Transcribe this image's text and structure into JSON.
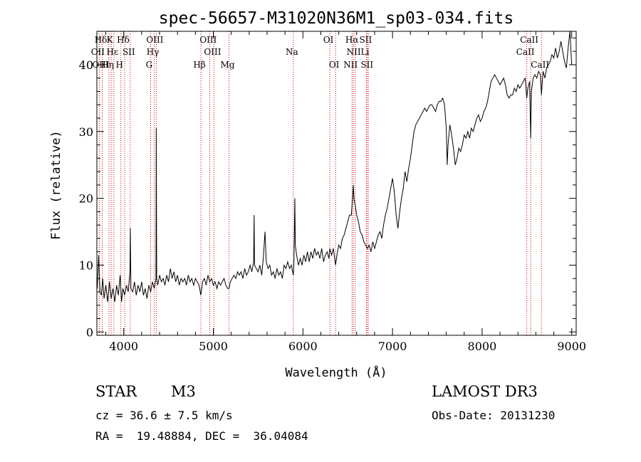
{
  "chart_data": {
    "type": "line",
    "title": "spec-56657-M31020N36M1_sp03-034.fits",
    "xlabel": "Wavelength (Å)",
    "ylabel": "Flux (relative)",
    "xlim": [
      3700,
      9050
    ],
    "ylim": [
      -0.5,
      45
    ],
    "xticks": [
      4000,
      5000,
      6000,
      7000,
      8000,
      9000
    ],
    "yticks": [
      0,
      10,
      20,
      30,
      40
    ],
    "line_color": "#000000",
    "marker_color": "#cc0000",
    "lines": [
      {
        "name": "Hδ",
        "x": 3760,
        "row": 0
      },
      {
        "name": "K",
        "x": 3860,
        "row": 0
      },
      {
        "name": "Hδ",
        "x": 4010,
        "row": 0
      },
      {
        "name": "OIII",
        "x": 4363,
        "row": 0
      },
      {
        "name": "OIII",
        "x": 4959,
        "row": 0
      },
      {
        "name": "OI",
        "x": 6300,
        "row": 0
      },
      {
        "name": "Hα",
        "x": 6563,
        "row": 0
      },
      {
        "name": "SII",
        "x": 6716,
        "row": 0
      },
      {
        "name": "CaII",
        "x": 8542,
        "row": 0
      },
      {
        "name": "OII",
        "x": 3727,
        "row": 1
      },
      {
        "name": "Hε",
        "x": 3890,
        "row": 1
      },
      {
        "name": "SII",
        "x": 4072,
        "row": 1
      },
      {
        "name": "Hγ",
        "x": 4340,
        "row": 1
      },
      {
        "name": "OIII",
        "x": 5007,
        "row": 1
      },
      {
        "name": "Na",
        "x": 5893,
        "row": 1
      },
      {
        "name": "NII",
        "x": 6583,
        "row": 1
      },
      {
        "name": "Li",
        "x": 6708,
        "row": 1
      },
      {
        "name": "CaII",
        "x": 8498,
        "row": 1
      },
      {
        "name": "OIII",
        "x": 3760,
        "row": 2
      },
      {
        "name": "Hη",
        "x": 3835,
        "row": 2
      },
      {
        "name": "H",
        "x": 3968,
        "row": 2
      },
      {
        "name": "G",
        "x": 4300,
        "row": 2
      },
      {
        "name": "Hβ",
        "x": 4861,
        "row": 2
      },
      {
        "name": "Mg",
        "x": 5175,
        "row": 2
      },
      {
        "name": "OI",
        "x": 6364,
        "row": 2
      },
      {
        "name": "NII",
        "x": 6548,
        "row": 2
      },
      {
        "name": "SII",
        "x": 6731,
        "row": 2
      },
      {
        "name": "CaII",
        "x": 8662,
        "row": 2
      }
    ],
    "spectrum": [
      [
        3705,
        6.5
      ],
      [
        3720,
        11.5
      ],
      [
        3735,
        6.0
      ],
      [
        3750,
        5.5
      ],
      [
        3765,
        8.0
      ],
      [
        3780,
        5.0
      ],
      [
        3800,
        7.0
      ],
      [
        3820,
        4.5
      ],
      [
        3840,
        7.5
      ],
      [
        3860,
        5.0
      ],
      [
        3880,
        6.5
      ],
      [
        3900,
        4.5
      ],
      [
        3920,
        7.0
      ],
      [
        3940,
        5.5
      ],
      [
        3960,
        8.5
      ],
      [
        3975,
        4.5
      ],
      [
        3990,
        6.5
      ],
      [
        4010,
        5.5
      ],
      [
        4030,
        7.0
      ],
      [
        4050,
        6.0
      ],
      [
        4070,
        9.0
      ],
      [
        4074,
        15.5
      ],
      [
        4080,
        6.5
      ],
      [
        4100,
        6.0
      ],
      [
        4120,
        7.5
      ],
      [
        4140,
        5.5
      ],
      [
        4160,
        7.0
      ],
      [
        4180,
        6.0
      ],
      [
        4200,
        7.5
      ],
      [
        4220,
        5.5
      ],
      [
        4240,
        6.5
      ],
      [
        4260,
        5.0
      ],
      [
        4280,
        7.0
      ],
      [
        4300,
        6.0
      ],
      [
        4320,
        7.5
      ],
      [
        4340,
        6.5
      ],
      [
        4360,
        8.0
      ],
      [
        4363,
        30.5
      ],
      [
        4368,
        8.0
      ],
      [
        4380,
        7.0
      ],
      [
        4400,
        8.5
      ],
      [
        4420,
        7.5
      ],
      [
        4440,
        8.0
      ],
      [
        4460,
        7.0
      ],
      [
        4480,
        8.5
      ],
      [
        4500,
        7.5
      ],
      [
        4520,
        9.5
      ],
      [
        4540,
        8.0
      ],
      [
        4560,
        9.0
      ],
      [
        4580,
        7.5
      ],
      [
        4600,
        8.5
      ],
      [
        4620,
        7.0
      ],
      [
        4640,
        8.0
      ],
      [
        4660,
        7.5
      ],
      [
        4680,
        8.0
      ],
      [
        4700,
        7.0
      ],
      [
        4720,
        8.5
      ],
      [
        4740,
        7.5
      ],
      [
        4760,
        8.0
      ],
      [
        4780,
        7.0
      ],
      [
        4800,
        8.0
      ],
      [
        4820,
        7.5
      ],
      [
        4840,
        7.0
      ],
      [
        4861,
        5.5
      ],
      [
        4880,
        7.5
      ],
      [
        4900,
        8.0
      ],
      [
        4920,
        7.0
      ],
      [
        4940,
        8.5
      ],
      [
        4960,
        7.5
      ],
      [
        4980,
        8.0
      ],
      [
        5000,
        7.0
      ],
      [
        5020,
        7.5
      ],
      [
        5040,
        6.5
      ],
      [
        5060,
        7.5
      ],
      [
        5080,
        7.0
      ],
      [
        5100,
        7.5
      ],
      [
        5120,
        8.0
      ],
      [
        5140,
        7.0
      ],
      [
        5160,
        6.5
      ],
      [
        5175,
        6.5
      ],
      [
        5190,
        7.5
      ],
      [
        5210,
        8.0
      ],
      [
        5230,
        8.5
      ],
      [
        5250,
        8.0
      ],
      [
        5270,
        9.0
      ],
      [
        5290,
        8.5
      ],
      [
        5310,
        9.0
      ],
      [
        5330,
        8.0
      ],
      [
        5350,
        9.5
      ],
      [
        5370,
        8.5
      ],
      [
        5390,
        9.0
      ],
      [
        5410,
        10.0
      ],
      [
        5430,
        9.0
      ],
      [
        5450,
        10.5
      ],
      [
        5455,
        17.5
      ],
      [
        5460,
        10.0
      ],
      [
        5480,
        9.5
      ],
      [
        5500,
        9.0
      ],
      [
        5520,
        10.0
      ],
      [
        5540,
        8.5
      ],
      [
        5560,
        11.5
      ],
      [
        5577,
        15.0
      ],
      [
        5590,
        10.5
      ],
      [
        5610,
        9.5
      ],
      [
        5630,
        10.0
      ],
      [
        5650,
        8.5
      ],
      [
        5670,
        9.0
      ],
      [
        5690,
        8.0
      ],
      [
        5710,
        9.5
      ],
      [
        5730,
        8.5
      ],
      [
        5750,
        9.0
      ],
      [
        5770,
        8.0
      ],
      [
        5790,
        10.0
      ],
      [
        5810,
        9.5
      ],
      [
        5830,
        10.5
      ],
      [
        5850,
        9.5
      ],
      [
        5870,
        10.0
      ],
      [
        5893,
        8.5
      ],
      [
        5900,
        10.5
      ],
      [
        5910,
        20.0
      ],
      [
        5915,
        13.0
      ],
      [
        5930,
        11.5
      ],
      [
        5950,
        10.0
      ],
      [
        5970,
        11.0
      ],
      [
        5990,
        10.0
      ],
      [
        6010,
        11.5
      ],
      [
        6030,
        10.5
      ],
      [
        6050,
        12.0
      ],
      [
        6070,
        10.5
      ],
      [
        6090,
        12.0
      ],
      [
        6110,
        11.0
      ],
      [
        6130,
        12.5
      ],
      [
        6150,
        11.5
      ],
      [
        6170,
        12.0
      ],
      [
        6190,
        11.0
      ],
      [
        6210,
        12.5
      ],
      [
        6230,
        10.5
      ],
      [
        6250,
        11.5
      ],
      [
        6270,
        12.0
      ],
      [
        6290,
        11.0
      ],
      [
        6300,
        12.5
      ],
      [
        6320,
        11.5
      ],
      [
        6340,
        12.5
      ],
      [
        6364,
        10.0
      ],
      [
        6380,
        11.5
      ],
      [
        6400,
        13.0
      ],
      [
        6420,
        12.5
      ],
      [
        6440,
        14.0
      ],
      [
        6460,
        14.5
      ],
      [
        6480,
        15.5
      ],
      [
        6500,
        16.5
      ],
      [
        6520,
        17.5
      ],
      [
        6540,
        17.5
      ],
      [
        6556,
        20.5
      ],
      [
        6563,
        22.0
      ],
      [
        6570,
        20.0
      ],
      [
        6583,
        19.0
      ],
      [
        6600,
        17.5
      ],
      [
        6620,
        16.5
      ],
      [
        6640,
        15.0
      ],
      [
        6660,
        14.5
      ],
      [
        6680,
        13.5
      ],
      [
        6700,
        13.0
      ],
      [
        6720,
        12.5
      ],
      [
        6740,
        13.0
      ],
      [
        6760,
        12.0
      ],
      [
        6780,
        13.5
      ],
      [
        6800,
        12.5
      ],
      [
        6820,
        13.5
      ],
      [
        6840,
        14.5
      ],
      [
        6860,
        15.0
      ],
      [
        6880,
        14.0
      ],
      [
        6900,
        16.0
      ],
      [
        6920,
        17.5
      ],
      [
        6940,
        18.5
      ],
      [
        6960,
        20.0
      ],
      [
        6980,
        21.5
      ],
      [
        7000,
        23.0
      ],
      [
        7020,
        21.0
      ],
      [
        7040,
        17.5
      ],
      [
        7060,
        15.5
      ],
      [
        7080,
        18.0
      ],
      [
        7100,
        20.0
      ],
      [
        7120,
        21.5
      ],
      [
        7140,
        24.0
      ],
      [
        7160,
        22.5
      ],
      [
        7180,
        24.5
      ],
      [
        7200,
        26.0
      ],
      [
        7220,
        28.0
      ],
      [
        7240,
        30.0
      ],
      [
        7260,
        31.0
      ],
      [
        7280,
        31.5
      ],
      [
        7300,
        32.0
      ],
      [
        7320,
        32.5
      ],
      [
        7340,
        33.0
      ],
      [
        7360,
        33.5
      ],
      [
        7380,
        33.0
      ],
      [
        7400,
        33.5
      ],
      [
        7420,
        34.0
      ],
      [
        7440,
        34.0
      ],
      [
        7460,
        33.5
      ],
      [
        7480,
        33.0
      ],
      [
        7500,
        34.0
      ],
      [
        7520,
        34.5
      ],
      [
        7540,
        34.5
      ],
      [
        7560,
        35.0
      ],
      [
        7580,
        34.0
      ],
      [
        7600,
        30.5
      ],
      [
        7610,
        25.0
      ],
      [
        7620,
        28.0
      ],
      [
        7640,
        31.0
      ],
      [
        7660,
        29.5
      ],
      [
        7680,
        27.5
      ],
      [
        7700,
        25.0
      ],
      [
        7720,
        26.0
      ],
      [
        7740,
        27.5
      ],
      [
        7760,
        27.0
      ],
      [
        7780,
        28.0
      ],
      [
        7800,
        29.5
      ],
      [
        7820,
        29.0
      ],
      [
        7840,
        30.0
      ],
      [
        7860,
        29.0
      ],
      [
        7880,
        30.5
      ],
      [
        7900,
        30.0
      ],
      [
        7920,
        31.0
      ],
      [
        7940,
        32.0
      ],
      [
        7960,
        32.5
      ],
      [
        7980,
        31.5
      ],
      [
        8000,
        32.0
      ],
      [
        8020,
        33.0
      ],
      [
        8040,
        33.5
      ],
      [
        8060,
        34.5
      ],
      [
        8080,
        36.0
      ],
      [
        8100,
        37.5
      ],
      [
        8120,
        38.0
      ],
      [
        8140,
        38.5
      ],
      [
        8160,
        38.0
      ],
      [
        8180,
        37.5
      ],
      [
        8200,
        37.0
      ],
      [
        8220,
        37.5
      ],
      [
        8240,
        38.0
      ],
      [
        8260,
        37.0
      ],
      [
        8280,
        35.5
      ],
      [
        8300,
        35.0
      ],
      [
        8320,
        35.5
      ],
      [
        8340,
        35.5
      ],
      [
        8360,
        36.5
      ],
      [
        8380,
        36.0
      ],
      [
        8400,
        37.0
      ],
      [
        8420,
        36.5
      ],
      [
        8440,
        37.0
      ],
      [
        8460,
        37.5
      ],
      [
        8480,
        38.0
      ],
      [
        8498,
        35.0
      ],
      [
        8510,
        36.5
      ],
      [
        8530,
        37.5
      ],
      [
        8542,
        29.0
      ],
      [
        8550,
        36.0
      ],
      [
        8570,
        38.0
      ],
      [
        8590,
        38.5
      ],
      [
        8610,
        38.0
      ],
      [
        8630,
        39.0
      ],
      [
        8650,
        38.5
      ],
      [
        8662,
        35.5
      ],
      [
        8680,
        39.0
      ],
      [
        8700,
        38.0
      ],
      [
        8720,
        39.5
      ],
      [
        8740,
        40.0
      ],
      [
        8760,
        40.5
      ],
      [
        8780,
        41.5
      ],
      [
        8800,
        41.0
      ],
      [
        8820,
        42.5
      ],
      [
        8840,
        41.0
      ],
      [
        8860,
        42.0
      ],
      [
        8880,
        43.5
      ],
      [
        8900,
        42.0
      ],
      [
        8920,
        40.5
      ],
      [
        8940,
        39.5
      ],
      [
        8960,
        42.5
      ],
      [
        8980,
        45.0
      ],
      [
        9000,
        40.0
      ]
    ]
  },
  "info": {
    "class_label": "STAR",
    "subclass_label": "M3",
    "survey_label": "LAMOST DR3",
    "cz_text": "cz = 36.6 ± 7.5 km/s",
    "obs_date_text": "Obs-Date: 20131230",
    "radec_text": "RA =  19.48884, DEC =  36.04084"
  }
}
